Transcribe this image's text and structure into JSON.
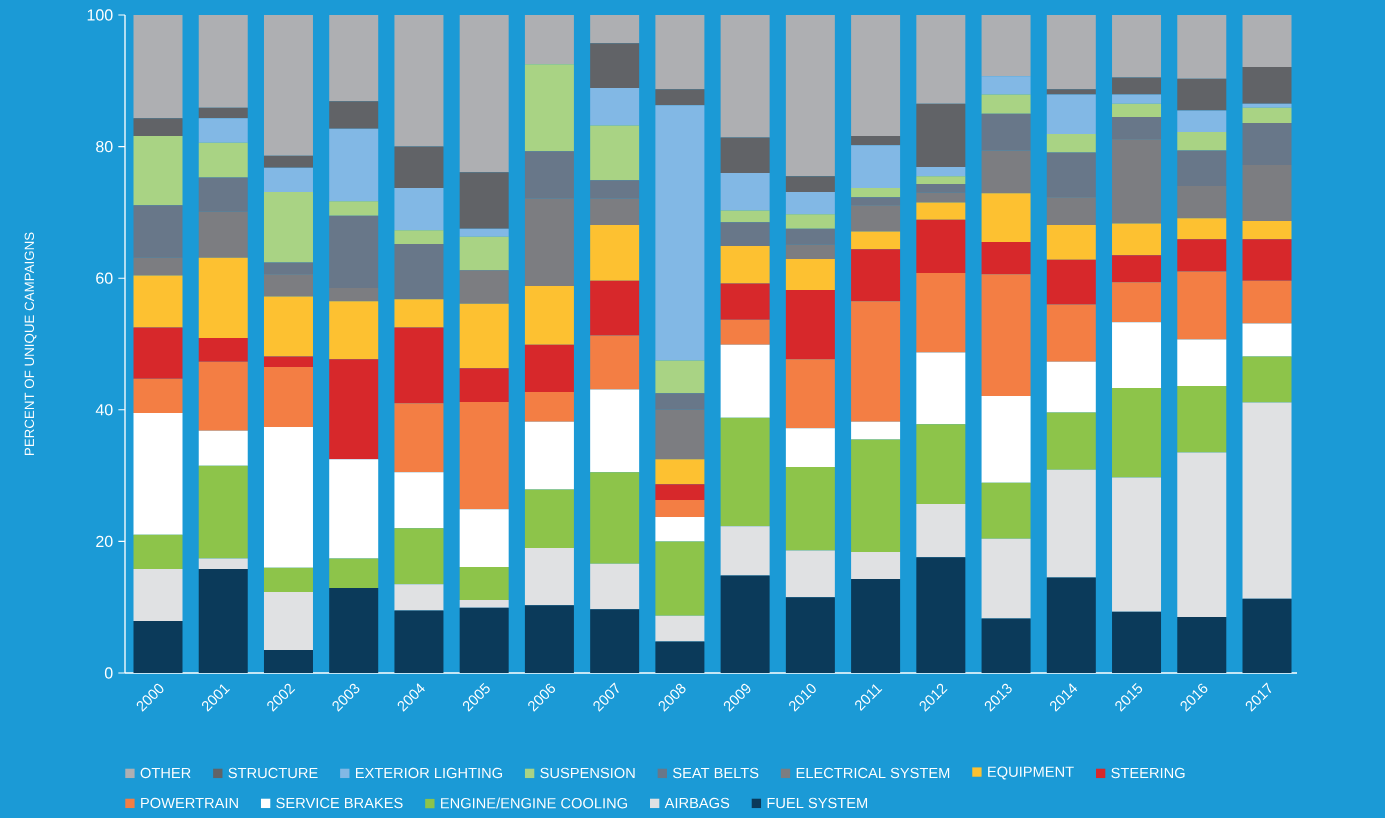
{
  "chart_data": {
    "type": "bar",
    "stacked": true,
    "ylabel": "PERCENT OF UNIQUE CAMPAIGNS",
    "categories": [
      "2000",
      "2001",
      "2002",
      "2003",
      "2004",
      "2005",
      "2006",
      "2007",
      "2008",
      "2009",
      "2010",
      "2011",
      "2012",
      "2013",
      "2014",
      "2015",
      "2016",
      "2017"
    ],
    "ylim": [
      0,
      100
    ],
    "yticks": [
      0,
      20,
      40,
      60,
      80,
      100
    ],
    "legend": "bottom",
    "series": [
      {
        "name": "FUEL SYSTEM",
        "color": "#0b3a5a",
        "values": [
          7.9,
          15.8,
          3.5,
          12.9,
          9.5,
          9.9,
          10.3,
          9.7,
          4.8,
          14.8,
          11.5,
          14.3,
          17.6,
          8.3,
          14.5,
          9.3,
          8.5,
          11.3
        ]
      },
      {
        "name": "AIRBAGS",
        "color": "#e0e1e3",
        "values": [
          7.9,
          1.6,
          8.8,
          0,
          4.0,
          1.2,
          8.7,
          6.9,
          3.9,
          7.5,
          7.1,
          4.1,
          8.1,
          12.1,
          16.4,
          20.4,
          25.0,
          29.8
        ]
      },
      {
        "name": "ENGINE/ENGINE COOLING",
        "color": "#8dc44a",
        "values": [
          5.2,
          14.1,
          3.7,
          4.5,
          8.5,
          5.0,
          8.9,
          13.9,
          11.3,
          16.5,
          12.7,
          17.1,
          12.1,
          8.5,
          8.7,
          13.6,
          10.1,
          7.0
        ]
      },
      {
        "name": "SERVICE BRAKES",
        "color": "#ffffff",
        "values": [
          18.5,
          5.3,
          21.4,
          15.1,
          8.5,
          8.8,
          10.3,
          12.6,
          3.7,
          11.1,
          5.9,
          2.7,
          10.9,
          13.2,
          7.7,
          10.0,
          7.1,
          5.0
        ]
      },
      {
        "name": "POWERTRAIN",
        "color": "#f37e44",
        "values": [
          5.2,
          10.5,
          9.1,
          0,
          10.5,
          16.3,
          4.5,
          8.2,
          2.6,
          3.8,
          10.5,
          18.3,
          12.1,
          18.5,
          8.7,
          6.1,
          10.3,
          6.5
        ]
      },
      {
        "name": "STEERING",
        "color": "#d7282b",
        "values": [
          7.8,
          3.6,
          1.6,
          15.2,
          11.5,
          5.1,
          7.2,
          8.3,
          2.4,
          5.5,
          10.5,
          7.9,
          8.1,
          4.9,
          6.8,
          4.1,
          4.9,
          6.3
        ]
      },
      {
        "name": "EQUIPMENT",
        "color": "#fdc131",
        "values": [
          7.9,
          12.2,
          9.1,
          8.8,
          4.3,
          9.8,
          8.9,
          8.5,
          3.8,
          5.7,
          4.7,
          2.7,
          2.6,
          7.4,
          5.3,
          4.8,
          3.2,
          2.8
        ]
      },
      {
        "name": "ELECTRICAL SYSTEM",
        "color": "#7c7d81",
        "values": [
          2.7,
          7.0,
          3.4,
          2.0,
          0,
          5.1,
          13.3,
          4.0,
          7.5,
          0,
          2.2,
          4.0,
          1.5,
          6.5,
          4.2,
          12.8,
          4.9,
          8.5
        ]
      },
      {
        "name": "SEAT BELTS",
        "color": "#687789",
        "values": [
          8.0,
          5.2,
          1.8,
          11.0,
          8.4,
          0,
          7.2,
          2.8,
          2.5,
          3.6,
          2.4,
          1.2,
          1.3,
          5.6,
          6.8,
          3.4,
          5.4,
          6.4
        ]
      },
      {
        "name": "SUSPENSION",
        "color": "#a9d384",
        "values": [
          10.5,
          5.3,
          10.7,
          2.2,
          2.1,
          5.1,
          13.2,
          8.3,
          5.0,
          1.8,
          2.2,
          1.4,
          1.2,
          2.9,
          2.8,
          2.0,
          2.8,
          2.3
        ]
      },
      {
        "name": "EXTERIOR LIGHTING",
        "color": "#82b8e5",
        "values": [
          0,
          3.7,
          3.7,
          11.0,
          6.4,
          1.2,
          0,
          5.7,
          38.8,
          5.7,
          3.4,
          6.5,
          1.4,
          2.8,
          6.0,
          1.4,
          3.3,
          0.6
        ]
      },
      {
        "name": "STRUCTURE",
        "color": "#616367",
        "values": [
          2.7,
          1.6,
          1.8,
          4.2,
          6.3,
          8.6,
          0,
          6.8,
          2.4,
          5.4,
          2.4,
          1.4,
          9.6,
          0,
          0.8,
          2.6,
          4.8,
          5.6
        ]
      },
      {
        "name": "OTHER",
        "color": "#aeafb2",
        "values": [
          15.7,
          14.1,
          21.4,
          13.1,
          20.0,
          23.9,
          7.5,
          4.3,
          11.3,
          18.6,
          24.5,
          18.4,
          13.5,
          9.3,
          11.3,
          9.5,
          9.7,
          7.9
        ]
      }
    ]
  }
}
